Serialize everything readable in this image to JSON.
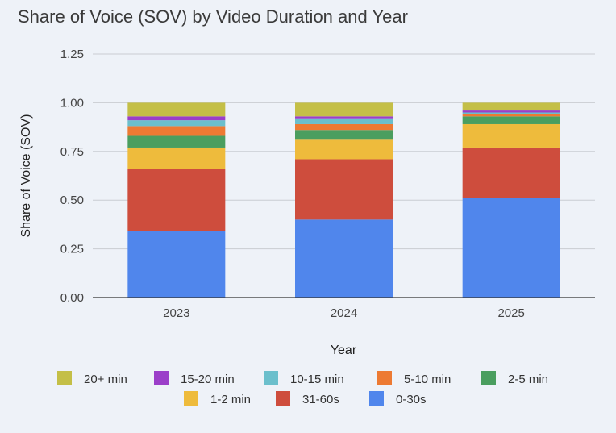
{
  "chart_data": {
    "type": "bar",
    "stacked": true,
    "title": "Share of Voice (SOV) by Video Duration and Year",
    "xlabel": "Year",
    "ylabel": "Share of Voice (SOV)",
    "ylim": [
      0,
      1.25
    ],
    "yticks": [
      "0.00",
      "0.25",
      "0.50",
      "0.75",
      "1.00",
      "1.25"
    ],
    "categories": [
      "2023",
      "2024",
      "2025"
    ],
    "grid": true,
    "legend_position": "bottom",
    "series": [
      {
        "name": "0-30s",
        "color": "#5086ec",
        "values": [
          0.34,
          0.4,
          0.51
        ]
      },
      {
        "name": "31-60s",
        "color": "#ce4d3d",
        "values": [
          0.32,
          0.31,
          0.26
        ]
      },
      {
        "name": "1-2 min",
        "color": "#eebb3c",
        "values": [
          0.11,
          0.1,
          0.12
        ]
      },
      {
        "name": "2-5 min",
        "color": "#4a9e5f",
        "values": [
          0.06,
          0.05,
          0.04
        ]
      },
      {
        "name": "5-10 min",
        "color": "#ed7a33",
        "values": [
          0.05,
          0.03,
          0.01
        ]
      },
      {
        "name": "10-15 min",
        "color": "#6bbfcc",
        "values": [
          0.03,
          0.03,
          0.01
        ]
      },
      {
        "name": "15-20 min",
        "color": "#9b3fc9",
        "values": [
          0.02,
          0.01,
          0.01
        ]
      },
      {
        "name": "20+ min",
        "color": "#c4bf47",
        "values": [
          0.07,
          0.07,
          0.04
        ]
      }
    ],
    "legend_order": [
      "20+ min",
      "15-20 min",
      "10-15 min",
      "5-10 min",
      "2-5 min",
      "1-2 min",
      "31-60s",
      "0-30s"
    ]
  }
}
